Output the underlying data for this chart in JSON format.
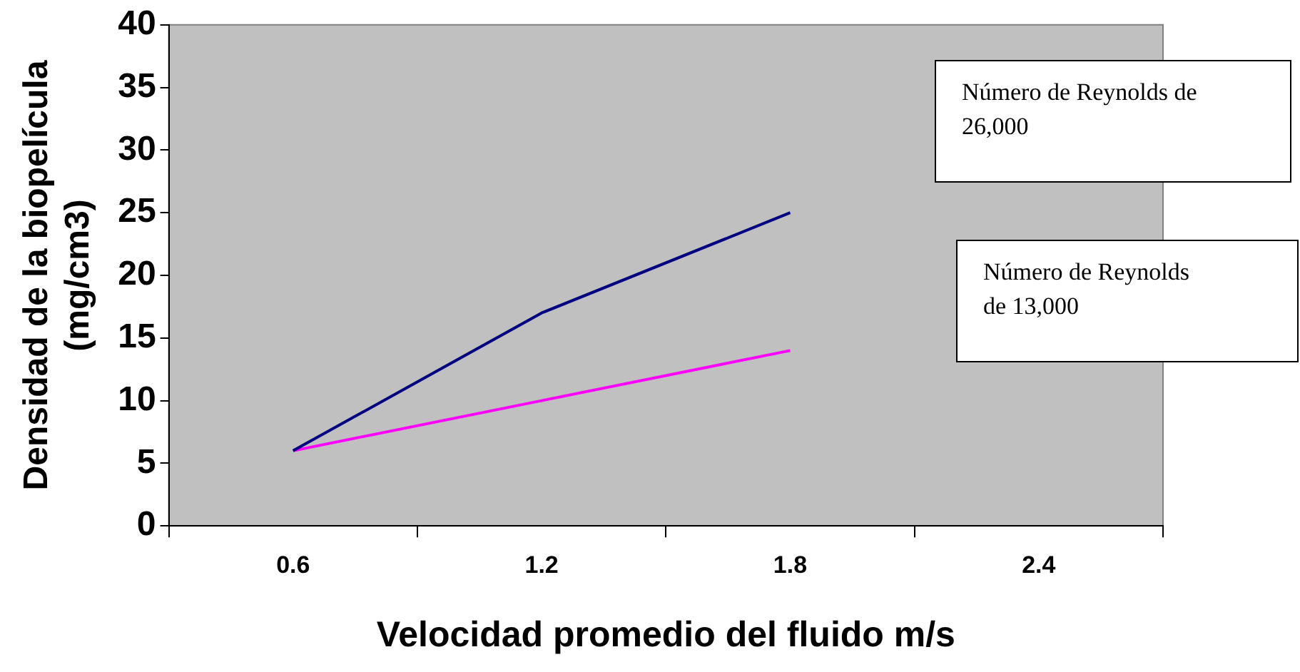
{
  "chart_data": {
    "type": "line",
    "xlabel": "Velocidad promedio del fluido m/s",
    "ylabel": "Densidad de la biopelícula (mg/cm3)",
    "categories": [
      "0.6",
      "1.2",
      "1.8",
      "2.4"
    ],
    "series": [
      {
        "name": "Número de Reynolds de 26,000",
        "color": "#000080",
        "values": [
          6,
          17,
          25,
          null
        ]
      },
      {
        "name": "Número de Reynolds de 13,000",
        "color": "#ff00ff",
        "values": [
          6,
          10,
          14,
          null
        ]
      }
    ],
    "ylim": [
      0,
      40
    ],
    "yticks": [
      0,
      5,
      10,
      15,
      20,
      25,
      30,
      35,
      40
    ],
    "grid": false,
    "legend": false,
    "marker": "none",
    "line_style": "solid"
  }
}
